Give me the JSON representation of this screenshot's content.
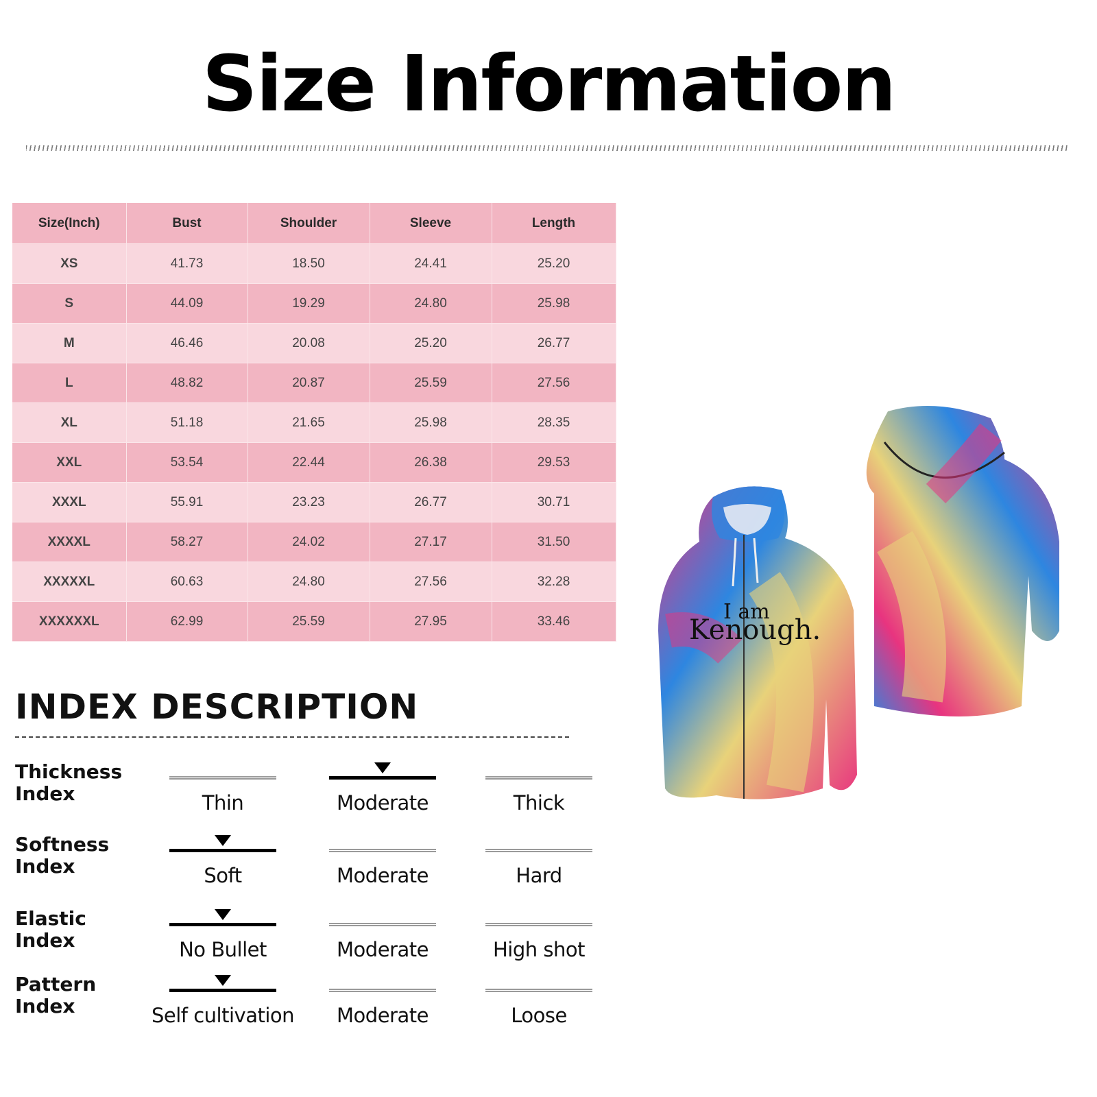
{
  "title": "Size Information",
  "size_table": {
    "headers": [
      "Size(Inch)",
      "Bust",
      "Shoulder",
      "Sleeve",
      "Length"
    ],
    "rows": [
      [
        "XS",
        "41.73",
        "18.50",
        "24.41",
        "25.20"
      ],
      [
        "S",
        "44.09",
        "19.29",
        "24.80",
        "25.98"
      ],
      [
        "M",
        "46.46",
        "20.08",
        "25.20",
        "26.77"
      ],
      [
        "L",
        "48.82",
        "20.87",
        "25.59",
        "27.56"
      ],
      [
        "XL",
        "51.18",
        "21.65",
        "25.98",
        "28.35"
      ],
      [
        "XXL",
        "53.54",
        "22.44",
        "26.38",
        "29.53"
      ],
      [
        "XXXL",
        "55.91",
        "23.23",
        "26.77",
        "30.71"
      ],
      [
        "XXXXL",
        "58.27",
        "24.02",
        "27.17",
        "31.50"
      ],
      [
        "XXXXXL",
        "60.63",
        "24.80",
        "27.56",
        "32.28"
      ],
      [
        "XXXXXXL",
        "62.99",
        "25.59",
        "27.95",
        "33.46"
      ]
    ]
  },
  "index": {
    "heading": "INDEX DESCRIPTION",
    "rows": [
      {
        "label1": "Thickness",
        "label2": "Index",
        "options": [
          "Thin",
          "Moderate",
          "Thick"
        ],
        "selected": 1
      },
      {
        "label1": "Softness",
        "label2": "Index",
        "options": [
          "Soft",
          "Moderate",
          "Hard"
        ],
        "selected": 0
      },
      {
        "label1": "Elastic",
        "label2": "Index",
        "options": [
          "No Bullet",
          "Moderate",
          "High shot"
        ],
        "selected": 0
      },
      {
        "label1": "Pattern",
        "label2": "Index",
        "options": [
          "Self cultivation",
          "Moderate",
          "Loose"
        ],
        "selected": 0
      }
    ]
  },
  "product": {
    "print_line1": "I am",
    "print_line2": "Kenough.",
    "colors": {
      "pink": "#e8347f",
      "blue": "#2e86e0",
      "yellow": "#e8d27a"
    }
  }
}
